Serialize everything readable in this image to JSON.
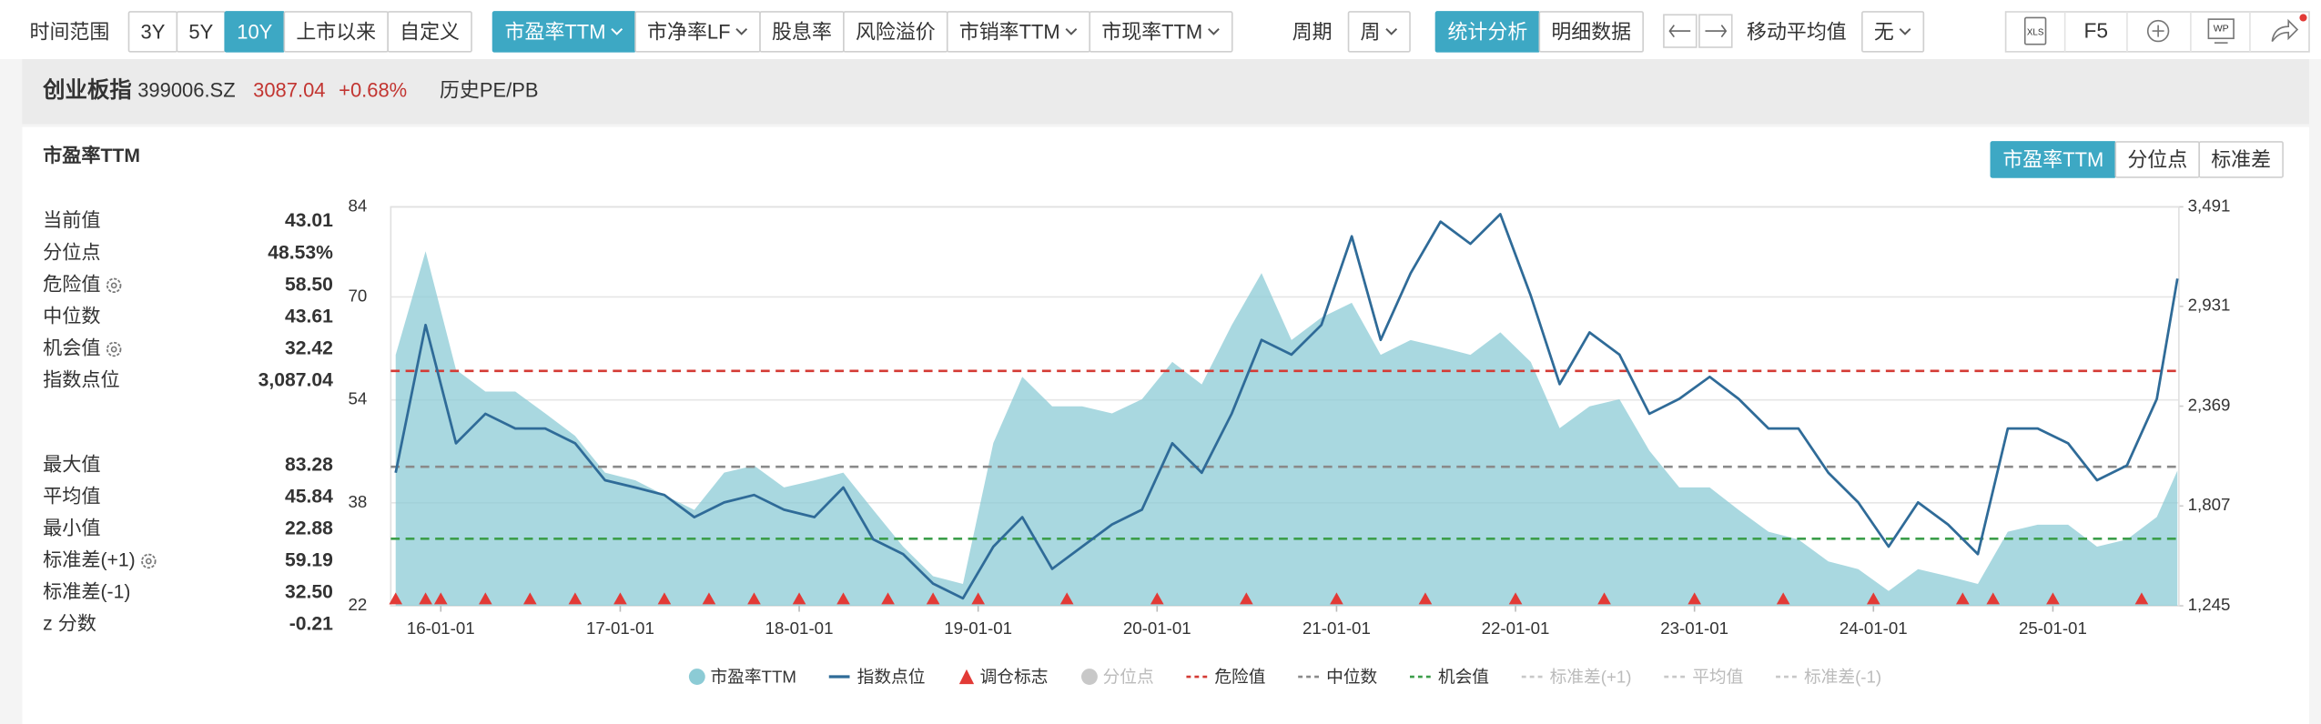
{
  "toolbar": {
    "range_label": "时间范围",
    "ranges": [
      {
        "label": "3Y",
        "active": false
      },
      {
        "label": "5Y",
        "active": false
      },
      {
        "label": "10Y",
        "active": true
      },
      {
        "label": "上市以来",
        "active": false
      },
      {
        "label": "自定义",
        "active": false
      }
    ],
    "metrics": [
      {
        "label": "市盈率TTM",
        "dropdown": true,
        "active": true
      },
      {
        "label": "市净率LF",
        "dropdown": true,
        "active": false
      },
      {
        "label": "股息率",
        "dropdown": false,
        "active": false
      },
      {
        "label": "风险溢价",
        "dropdown": false,
        "active": false
      },
      {
        "label": "市销率TTM",
        "dropdown": true,
        "active": false
      },
      {
        "label": "市现率TTM",
        "dropdown": true,
        "active": false
      }
    ],
    "period_label": "周期",
    "period": {
      "label": "周",
      "dropdown": true,
      "active": false
    },
    "views": [
      {
        "label": "统计分析",
        "active": true
      },
      {
        "label": "明细数据",
        "active": false
      }
    ],
    "ma_label": "移动平均值",
    "ma": {
      "label": "无",
      "dropdown": true,
      "active": false
    },
    "tool_xls": "XLS",
    "tool_f5": "F5",
    "tool_wp": "WP"
  },
  "header": {
    "name": "创业板指",
    "code": "399006.SZ",
    "price": "3087.04",
    "change": "+0.68%",
    "link": "历史PE/PB"
  },
  "panel": {
    "title": "市盈率TTM",
    "tabs": [
      {
        "label": "市盈率TTM",
        "active": true
      },
      {
        "label": "分位点",
        "active": false
      },
      {
        "label": "标准差",
        "active": false
      }
    ],
    "stats_current": [
      {
        "label": "当前值",
        "value": "43.01",
        "gear": false
      },
      {
        "label": "分位点",
        "value": "48.53%",
        "gear": false
      },
      {
        "label": "危险值",
        "value": "58.50",
        "gear": true
      },
      {
        "label": "中位数",
        "value": "43.61",
        "gear": false
      },
      {
        "label": "机会值",
        "value": "32.42",
        "gear": true
      },
      {
        "label": "指数点位",
        "value": "3,087.04",
        "gear": false
      }
    ],
    "stats_history": [
      {
        "label": "最大值",
        "value": "83.28",
        "gear": false
      },
      {
        "label": "平均值",
        "value": "45.84",
        "gear": false
      },
      {
        "label": "最小值",
        "value": "22.88",
        "gear": false
      },
      {
        "label": "标准差(+1)",
        "value": "59.19",
        "gear": true
      },
      {
        "label": "标准差(-1)",
        "value": "32.50",
        "gear": false
      },
      {
        "label": "z 分数",
        "value": "-0.21",
        "gear": false
      }
    ]
  },
  "chart_data": {
    "type": "combo",
    "x": [
      "15-10-01",
      "15-12-01",
      "16-02-01",
      "16-04-01",
      "16-06-01",
      "16-08-01",
      "16-10-01",
      "16-12-01",
      "17-02-01",
      "17-04-01",
      "17-06-01",
      "17-08-01",
      "17-10-01",
      "17-12-01",
      "18-02-01",
      "18-04-01",
      "18-06-01",
      "18-08-01",
      "18-10-01",
      "18-12-01",
      "19-02-01",
      "19-04-01",
      "19-06-01",
      "19-08-01",
      "19-10-01",
      "19-12-01",
      "20-02-01",
      "20-04-01",
      "20-06-01",
      "20-08-01",
      "20-10-01",
      "20-12-01",
      "21-02-01",
      "21-04-01",
      "21-06-01",
      "21-08-01",
      "21-10-01",
      "21-12-01",
      "22-02-01",
      "22-04-01",
      "22-06-01",
      "22-08-01",
      "22-10-01",
      "22-12-01",
      "23-02-01",
      "23-04-01",
      "23-06-01",
      "23-08-01",
      "23-10-01",
      "23-12-01",
      "24-02-01",
      "24-04-01",
      "24-06-01",
      "24-08-01",
      "24-10-01",
      "24-12-01",
      "25-02-01",
      "25-04-01",
      "25-06-01",
      "25-08-01",
      "25-09-12"
    ],
    "xlim": [
      "15-09-21",
      "25-09-15"
    ],
    "xticks": [
      "16-01-01",
      "17-01-01",
      "18-01-01",
      "19-01-01",
      "20-01-01",
      "21-01-01",
      "22-01-01",
      "23-01-01",
      "24-01-01",
      "25-01-01"
    ],
    "ylim": [
      22,
      84
    ],
    "yticks": [
      22,
      38,
      54,
      70,
      84
    ],
    "y2lim": [
      1245,
      3491
    ],
    "y2ticks": [
      {
        "value": 1245,
        "label": "1,245"
      },
      {
        "value": 1807,
        "label": "1,807"
      },
      {
        "value": 2369,
        "label": "2,369"
      },
      {
        "value": 2931,
        "label": "2,931"
      },
      {
        "value": 3491,
        "label": "3,491"
      }
    ],
    "grid": true,
    "series": [
      {
        "name": "市盈率TTM",
        "kind": "area",
        "color": "#8ccbd5",
        "values": [
          61.0,
          77.1,
          58.7,
          55.3,
          55.3,
          51.9,
          48.4,
          42.7,
          41.5,
          39.2,
          36.9,
          42.7,
          43.8,
          40.4,
          41.5,
          42.7,
          36.9,
          31.2,
          26.6,
          25.4,
          47.3,
          57.6,
          53.0,
          53.0,
          51.9,
          54.1,
          59.9,
          56.4,
          65.6,
          73.7,
          63.3,
          66.8,
          69.1,
          61.0,
          63.3,
          62.2,
          61.0,
          64.5,
          59.9,
          49.6,
          53.0,
          54.1,
          46.1,
          40.4,
          40.4,
          36.9,
          33.5,
          32.3,
          28.9,
          27.7,
          24.3,
          27.7,
          26.6,
          25.4,
          33.5,
          34.6,
          34.6,
          31.2,
          32.3,
          35.8,
          43.01
        ]
      },
      {
        "name": "指数点位",
        "kind": "line",
        "axis": "y2",
        "color": "#2f6b98",
        "values": [
          1994,
          2826,
          2160,
          2326,
          2243,
          2243,
          2160,
          1952,
          1911,
          1869,
          1744,
          1827,
          1869,
          1786,
          1744,
          1911,
          1619,
          1536,
          1370,
          1287,
          1578,
          1744,
          1453,
          1578,
          1703,
          1786,
          2160,
          1994,
          2326,
          2742,
          2659,
          2826,
          3325,
          2742,
          3117,
          3408,
          3283,
          3450,
          2992,
          2493,
          2784,
          2659,
          2326,
          2410,
          2534,
          2410,
          2243,
          2243,
          1994,
          1827,
          1578,
          1827,
          1703,
          1536,
          2243,
          2243,
          2160,
          1952,
          2035,
          2410,
          3087.04
        ]
      },
      {
        "name": "调仓标志",
        "kind": "marker",
        "color": "#e23a36",
        "x": [
          "15-10-01",
          "15-12-01",
          "16-01-01",
          "16-04-01",
          "16-07-01",
          "16-10-01",
          "17-01-01",
          "17-04-01",
          "17-07-01",
          "17-10-01",
          "18-01-01",
          "18-04-01",
          "18-07-01",
          "18-10-01",
          "19-01-01",
          "19-07-01",
          "20-01-01",
          "20-07-01",
          "21-01-01",
          "21-07-01",
          "22-01-01",
          "22-07-01",
          "23-01-01",
          "23-07-01",
          "24-01-01",
          "24-07-01",
          "24-09-01",
          "25-01-01",
          "25-07-01"
        ]
      },
      {
        "name": "分位点",
        "kind": "area",
        "visible": false,
        "color": "#c8c8c8"
      },
      {
        "name": "危险值",
        "kind": "hline",
        "value": 58.5,
        "color": "#d43b35"
      },
      {
        "name": "中位数",
        "kind": "hline",
        "value": 43.61,
        "color": "#8a8a8a"
      },
      {
        "name": "机会值",
        "kind": "hline",
        "value": 32.42,
        "color": "#3c9e4a"
      },
      {
        "name": "标准差(+1)",
        "kind": "hline",
        "visible": false,
        "color": "#c8c8c8"
      },
      {
        "name": "平均值",
        "kind": "hline",
        "visible": false,
        "color": "#c8c8c8"
      },
      {
        "name": "标准差(-1)",
        "kind": "hline",
        "visible": false,
        "color": "#c8c8c8"
      }
    ]
  }
}
